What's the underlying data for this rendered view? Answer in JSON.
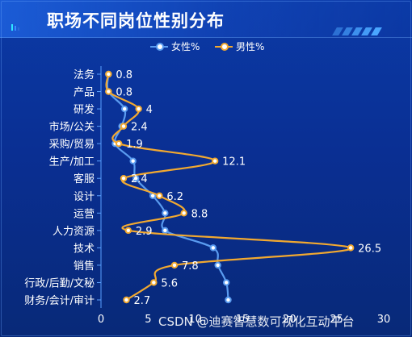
{
  "title": "职场不同岗位性别分布",
  "watermark": "CSDN @迪赛智慧数可视化互动平台",
  "colors": {
    "female": "#5a9cf0",
    "male": "#f2a930",
    "text": "#ffffff",
    "axis": "#5aa0ff"
  },
  "legend": [
    {
      "name": "女性%",
      "color": "#5a9cf0"
    },
    {
      "name": "男性%",
      "color": "#f2a930"
    }
  ],
  "chart_data": {
    "type": "line",
    "title": "职场不同岗位性别分布",
    "orientation": "horizontal",
    "categories": [
      "法务",
      "产品",
      "研发",
      "市场/公关",
      "采购/贸易",
      "生产/加工",
      "客服",
      "设计",
      "运营",
      "人力资源",
      "技术",
      "销售",
      "行政/后勤/文秘",
      "财务/会计/审计"
    ],
    "x_ticks": [
      "0",
      "5",
      "10",
      "15",
      "20",
      "25",
      "30"
    ],
    "xlim": [
      0,
      30
    ],
    "smooth": true,
    "series": [
      {
        "name": "女性%",
        "values": [
          0.8,
          0.8,
          2.5,
          2.2,
          1.5,
          3.4,
          3.7,
          5.5,
          6.8,
          6.8,
          11.9,
          12.4,
          13.3,
          13.5
        ],
        "labels": []
      },
      {
        "name": "男性%",
        "values": [
          0.8,
          0.8,
          4,
          2.4,
          1.9,
          12.1,
          2.4,
          6.2,
          8.8,
          2.9,
          26.5,
          7.8,
          5.6,
          2.7
        ],
        "labels": [
          "0.8",
          "0.8",
          "4",
          "2.4",
          "1.9",
          "12.1",
          "2.4",
          "6.2",
          "8.8",
          "2.9",
          "26.5",
          "7.8",
          "5.6",
          "2.7"
        ]
      }
    ],
    "legend_position": "top-center",
    "grid": false
  }
}
